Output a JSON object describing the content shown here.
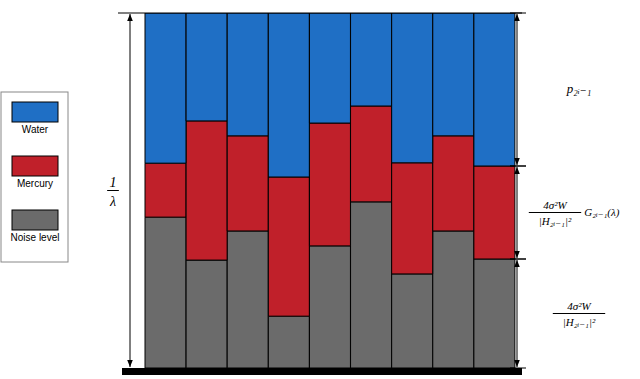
{
  "chart_data": {
    "type": "bar",
    "stacked": true,
    "tick_labels": false,
    "categories": [
      null,
      null,
      null,
      null,
      null,
      null,
      null,
      null,
      null
    ],
    "ylim": [
      0,
      100
    ],
    "yticks": [
      0,
      100
    ],
    "annotation": {
      "numerator": "1",
      "denominator": "λ"
    },
    "series": [
      {
        "name": "Noise level",
        "color": "#6b6b6b",
        "values": [
          42.5,
          30.4,
          38.6,
          14.6,
          34.4,
          46.8,
          26.5,
          38.6,
          30.7
        ],
        "annotation": {
          "numerator": "4σ²W",
          "denominator": "|H₂ᵢ₋₁|²"
        }
      },
      {
        "name": "Mercury",
        "color": "#c0202a",
        "values": [
          15.2,
          39.2,
          26.8,
          39.2,
          34.6,
          27.0,
          31.3,
          26.8,
          26.2
        ],
        "annotation": {
          "numerator": "4σ²W",
          "denominator": "|H₂ᵢ₋₁|²",
          "suffix": "G₂ᵢ₋₁(λ)"
        }
      },
      {
        "name": "Water",
        "color": "#1f6fc5",
        "values": [
          42.3,
          30.4,
          34.6,
          46.2,
          31.0,
          26.2,
          42.2,
          34.6,
          43.1
        ],
        "annotation": {
          "text": "p₂ᵢ₋₁"
        }
      }
    ]
  }
}
